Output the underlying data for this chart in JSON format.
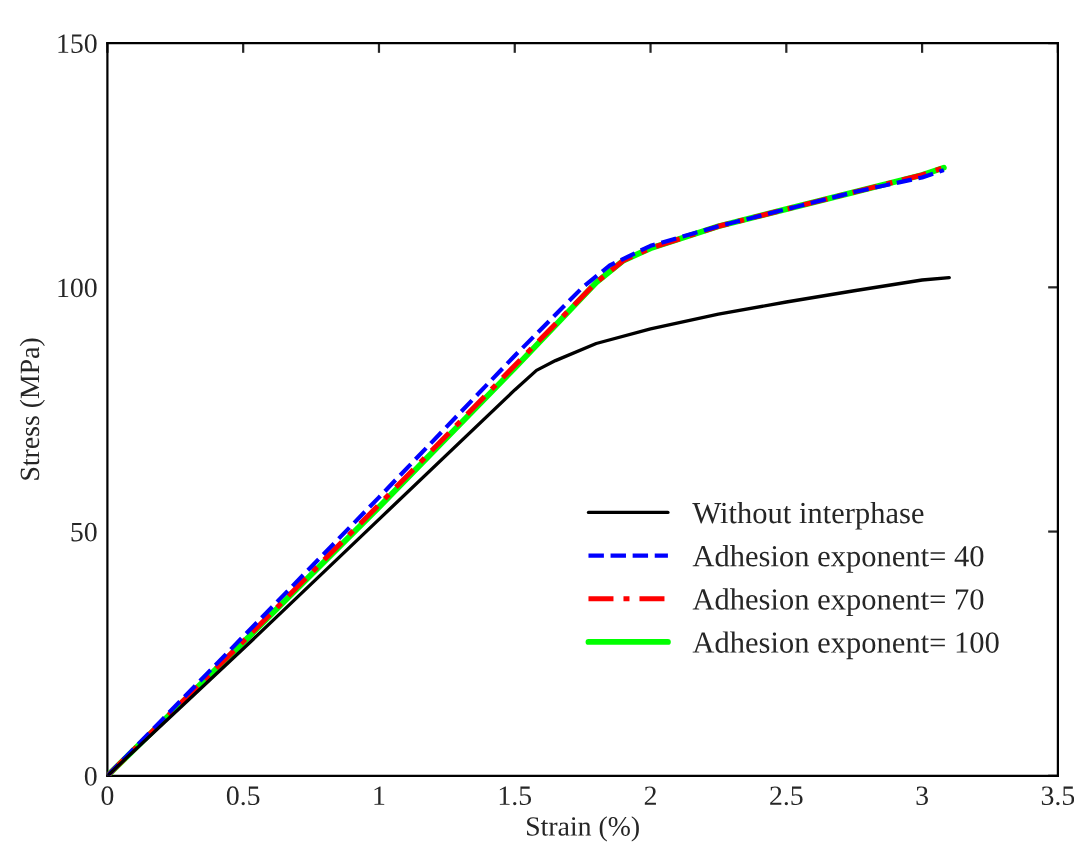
{
  "chart_data": {
    "type": "line",
    "xlabel": "Strain (%)",
    "ylabel": "Stress (MPa)",
    "xlim": [
      0,
      3.5
    ],
    "xticks": [
      0,
      0.5,
      1,
      1.5,
      2,
      2.5,
      3,
      3.5
    ],
    "ylim": [
      0,
      150
    ],
    "yticks": [
      0,
      50,
      100,
      150
    ],
    "grid": false,
    "legend": "bottom right",
    "marker": "none",
    "series": [
      {
        "name": "Without interphase",
        "color": "#000000",
        "line_style": "solid",
        "x": [
          0,
          0.5,
          1,
          1.5,
          1.58,
          1.65,
          1.8,
          2,
          2.25,
          2.5,
          2.75,
          3,
          3.1
        ],
        "values": [
          0,
          26,
          52.5,
          79,
          83,
          85,
          88.5,
          91.5,
          94.5,
          97,
          99.3,
          101.5,
          102
        ]
      },
      {
        "name": "Adhesion exponent= 40",
        "color": "#0000ff",
        "line_style": "dashed",
        "x": [
          0,
          0.5,
          1,
          1.5,
          1.75,
          1.85,
          2,
          2.25,
          2.5,
          2.75,
          3,
          3.08
        ],
        "values": [
          0,
          28.5,
          57,
          86,
          100,
          104.5,
          108.5,
          112.5,
          116,
          119.5,
          122.5,
          124
        ]
      },
      {
        "name": "Adhesion exponent= 70",
        "color": "#ff0000",
        "line_style": "dashdot",
        "x": [
          0,
          0.5,
          1,
          1.5,
          1.8,
          1.9,
          2,
          2.25,
          2.5,
          2.75,
          3,
          3.08
        ],
        "values": [
          0,
          27.5,
          55.5,
          84,
          101,
          105.5,
          108,
          112.5,
          116,
          119.5,
          123,
          124.5
        ]
      },
      {
        "name": "Adhesion exponent= 100",
        "color": "#00ff00",
        "line_style": "solid",
        "x": [
          0,
          0.5,
          1,
          1.5,
          1.8,
          1.9,
          2,
          2.25,
          2.5,
          2.75,
          3,
          3.08
        ],
        "values": [
          0,
          27.3,
          55,
          83.5,
          101,
          105.5,
          108,
          112.5,
          116,
          119.5,
          123,
          124.5
        ]
      }
    ]
  }
}
